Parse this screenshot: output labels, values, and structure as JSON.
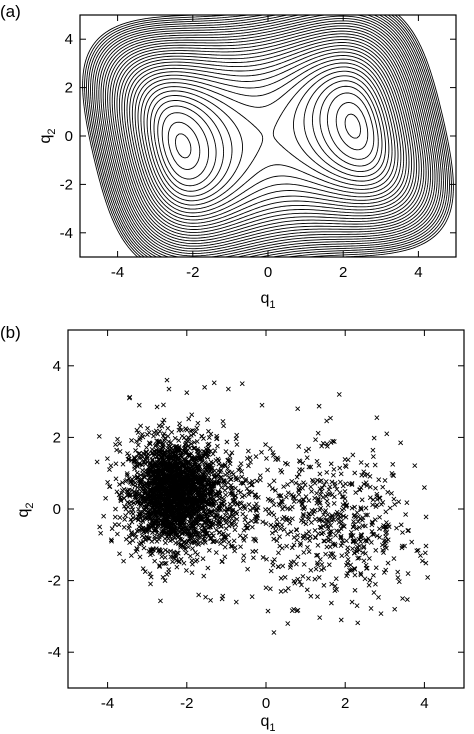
{
  "chart_data": [
    {
      "panel_label": "(a)",
      "type": "contour",
      "xlabel": "q",
      "xlabel_sub": "1",
      "ylabel": "q",
      "ylabel_sub": "2",
      "xlim": [
        -5,
        5
      ],
      "ylim": [
        -5,
        5
      ],
      "xticks": [
        -4,
        -2,
        0,
        2,
        4
      ],
      "yticks": [
        -4,
        -2,
        0,
        2,
        4
      ],
      "xtick_labels": [
        "-4",
        "-2",
        "0",
        "2",
        "4"
      ],
      "ytick_labels": [
        "-4",
        "-2",
        "0",
        "2",
        "4"
      ],
      "grid": false,
      "line_color": "#000000",
      "surface": "double-well: minima near (-2.4, 0.6) and (2.4, -0.3), saddle at (0, 0)",
      "levels": [
        -22,
        -18,
        -10,
        0,
        10,
        20,
        30,
        40,
        50,
        60,
        70,
        80,
        90,
        100,
        110,
        120,
        130,
        140,
        150,
        160,
        170,
        180,
        190,
        200,
        210,
        220,
        230,
        240,
        250,
        260,
        270,
        280,
        290,
        300
      ]
    },
    {
      "panel_label": "(b)",
      "type": "scatter",
      "marker": "x",
      "marker_color": "#000000",
      "xlabel": "q",
      "xlabel_sub": "1",
      "ylabel": "q",
      "ylabel_sub": "2",
      "xlim": [
        -5,
        5
      ],
      "ylim": [
        -5,
        5
      ],
      "xticks": [
        -4,
        -2,
        0,
        2,
        4
      ],
      "yticks": [
        -4,
        -2,
        0,
        2,
        4
      ],
      "xtick_labels": [
        "-4",
        "-2",
        "0",
        "2",
        "4"
      ],
      "ytick_labels": [
        "-4",
        "-2",
        "0",
        "2",
        "4"
      ],
      "grid": false,
      "clusters": [
        {
          "center": [
            -2.35,
            0.45
          ],
          "spread": [
            0.55,
            0.75
          ],
          "count": 2200
        },
        {
          "center": [
            -1.6,
            0.3
          ],
          "spread": [
            0.8,
            0.9
          ],
          "count": 500
        },
        {
          "center": [
            2.0,
            -0.6
          ],
          "spread": [
            0.9,
            0.95
          ],
          "count": 420
        },
        {
          "center": [
            0.6,
            0.1
          ],
          "spread": [
            0.9,
            1.0
          ],
          "count": 160
        }
      ],
      "points": [
        [
          -4.2,
          -0.5
        ],
        [
          -4.1,
          -0.2
        ],
        [
          -4.05,
          0.3
        ],
        [
          -3.9,
          -0.9
        ],
        [
          -3.8,
          1.8
        ],
        [
          -3.75,
          1.95
        ],
        [
          -3.45,
          3.1
        ],
        [
          -3.2,
          2.9
        ],
        [
          -2.75,
          2.85
        ],
        [
          -2.5,
          3.6
        ],
        [
          -2.45,
          3.35
        ],
        [
          -2.0,
          3.25
        ],
        [
          -1.55,
          3.4
        ],
        [
          -0.95,
          3.35
        ],
        [
          -0.6,
          3.5
        ],
        [
          -0.1,
          2.9
        ],
        [
          0.8,
          2.8
        ],
        [
          1.85,
          3.2
        ],
        [
          2.8,
          2.55
        ],
        [
          3.05,
          2.1
        ],
        [
          3.4,
          1.85
        ],
        [
          4.0,
          0.6
        ],
        [
          3.9,
          -1.3
        ],
        [
          3.95,
          -1.45
        ],
        [
          3.45,
          -2.5
        ],
        [
          3.25,
          -2.8
        ],
        [
          2.3,
          -2.7
        ],
        [
          1.9,
          -3.1
        ],
        [
          1.3,
          -2.45
        ],
        [
          0.7,
          -2.8
        ],
        [
          0.55,
          -3.2
        ],
        [
          0.2,
          -3.45
        ],
        [
          0.05,
          -2.85
        ],
        [
          0.0,
          -2.2
        ],
        [
          -0.35,
          -2.45
        ],
        [
          -0.75,
          -2.6
        ],
        [
          -1.4,
          -2.55
        ],
        [
          -1.7,
          -2.4
        ],
        [
          -2.55,
          -2.0
        ],
        [
          -2.9,
          -1.9
        ],
        [
          -3.4,
          -1.3
        ],
        [
          -3.7,
          -1.25
        ],
        [
          3.35,
          0.2
        ],
        [
          3.6,
          -0.6
        ],
        [
          1.55,
          1.75
        ],
        [
          0.85,
          1.1
        ],
        [
          1.4,
          -1.7
        ],
        [
          2.5,
          -1.95
        ],
        [
          2.95,
          -1.15
        ],
        [
          3.2,
          0.95
        ]
      ]
    }
  ]
}
